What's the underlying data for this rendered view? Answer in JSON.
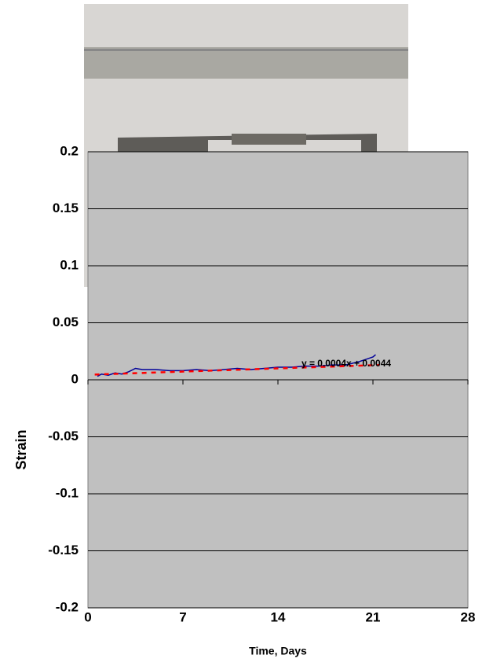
{
  "chart_data": {
    "type": "line",
    "annotation": "y = 0.0004x + 0.0044",
    "xlabel": "Time, Days",
    "ylabel": "Strain",
    "xlim": [
      0,
      28
    ],
    "xticks": [
      0,
      7,
      14,
      21,
      28
    ],
    "ylim": [
      -0.2,
      0.2
    ],
    "yticks": [
      0.2,
      0.15,
      0.1,
      0.05,
      0,
      -0.05,
      -0.1,
      -0.15,
      -0.2
    ],
    "grid": true,
    "series": [
      {
        "color": "#000099",
        "dash": false,
        "x": [
          0.7,
          1,
          1.5,
          2,
          2.5,
          3,
          3.5,
          4,
          5,
          6,
          7,
          8,
          9,
          10,
          11,
          12,
          13,
          14,
          15,
          16,
          17,
          18,
          19,
          20,
          20.5,
          21,
          21.2
        ],
        "values": [
          0.003,
          0.005,
          0.004,
          0.006,
          0.005,
          0.007,
          0.01,
          0.009,
          0.009,
          0.008,
          0.008,
          0.009,
          0.008,
          0.009,
          0.01,
          0.009,
          0.01,
          0.011,
          0.011,
          0.012,
          0.012,
          0.013,
          0.013,
          0.016,
          0.018,
          0.02,
          0.022
        ]
      },
      {
        "color": "#ff0000",
        "dash": true,
        "x": [
          0.5,
          21.5
        ],
        "values": [
          0.0046,
          0.013
        ]
      }
    ]
  }
}
